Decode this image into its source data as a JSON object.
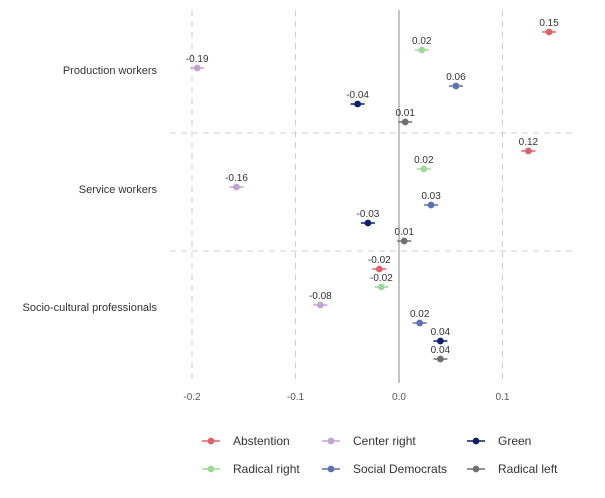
{
  "chart_data": {
    "type": "scatter",
    "title": "",
    "xlabel": "",
    "ylabel": "",
    "xlim": [
      -0.22,
      0.17
    ],
    "x_ticks": [
      -0.2,
      -0.1,
      0.0,
      0.1
    ],
    "x_tick_labels": [
      "-0.2",
      "-0.1",
      "0.0",
      "0.1"
    ],
    "grid": true,
    "legend_position": "bottom",
    "categories": [
      "Production workers",
      "Service workers",
      "Socio-cultural professionals"
    ],
    "series": [
      {
        "name": "Abstention",
        "color": "#e0606a",
        "values": [
          0.145,
          0.125,
          -0.019
        ],
        "labels": [
          "0.15",
          "0.12",
          "-0.02"
        ]
      },
      {
        "name": "Center right",
        "color": "#c3a3d2",
        "values": [
          -0.195,
          -0.157,
          -0.076
        ],
        "labels": [
          "-0.19",
          "-0.16",
          "-0.08"
        ]
      },
      {
        "name": "Green",
        "color": "#0b1f6b",
        "values": [
          -0.04,
          -0.03,
          0.04
        ],
        "labels": [
          "-0.04",
          "-0.03",
          "0.04"
        ]
      },
      {
        "name": "Radical right",
        "color": "#9fd99a",
        "values": [
          0.022,
          0.024,
          -0.017
        ],
        "labels": [
          "0.02",
          "0.02",
          "-0.02"
        ]
      },
      {
        "name": "Social Democrats",
        "color": "#5b72b0",
        "values": [
          0.055,
          0.031,
          0.02
        ],
        "labels": [
          "0.06",
          "0.03",
          "0.02"
        ]
      },
      {
        "name": "Radical left",
        "color": "#707070",
        "values": [
          0.006,
          0.005,
          0.04
        ],
        "labels": [
          "0.01",
          "0.01",
          "0.04"
        ]
      }
    ],
    "data_label_order": [
      "Abstention",
      "Radical right",
      "Center right",
      "Social Democrats",
      "Green",
      "Radical left"
    ],
    "legend_layout": [
      [
        "Abstention",
        "Center right",
        "Green"
      ],
      [
        "Radical right",
        "Social Democrats",
        "Radical left"
      ]
    ]
  }
}
